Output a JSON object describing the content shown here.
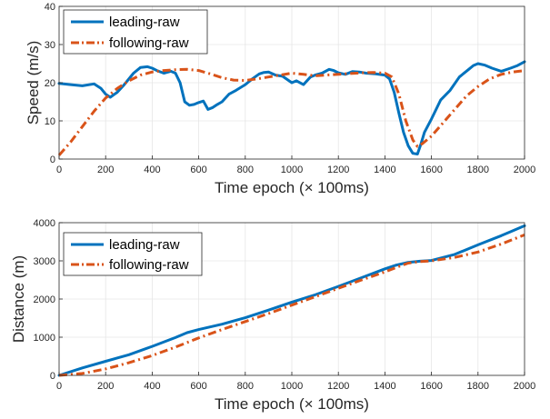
{
  "colors": {
    "leading": "#0072BD",
    "following": "#D95319",
    "grid": "#e6e6e6",
    "axis": "#262626"
  },
  "chart_data": [
    {
      "type": "line",
      "title": "",
      "xlabel": "Time epoch (× 100ms)",
      "ylabel": "Speed (m/s)",
      "xlim": [
        0,
        2000
      ],
      "ylim": [
        0,
        40
      ],
      "xticks": [
        0,
        200,
        400,
        600,
        800,
        1000,
        1200,
        1400,
        1600,
        1800,
        2000
      ],
      "yticks": [
        0,
        10,
        20,
        30,
        40
      ],
      "grid": true,
      "legend_position": "top-left",
      "series": [
        {
          "name": "leading-raw",
          "style": "solid",
          "x": [
            0,
            50,
            100,
            150,
            180,
            200,
            220,
            250,
            280,
            320,
            350,
            380,
            400,
            420,
            450,
            480,
            500,
            520,
            540,
            560,
            580,
            600,
            620,
            640,
            660,
            680,
            700,
            730,
            760,
            800,
            830,
            860,
            880,
            900,
            930,
            960,
            1000,
            1020,
            1050,
            1080,
            1100,
            1130,
            1160,
            1180,
            1200,
            1230,
            1260,
            1290,
            1320,
            1360,
            1400,
            1420,
            1440,
            1460,
            1480,
            1500,
            1520,
            1540,
            1555,
            1570,
            1600,
            1640,
            1680,
            1720,
            1760,
            1780,
            1800,
            1830,
            1860,
            1900,
            1940,
            1970,
            2000
          ],
          "y": [
            19.8,
            19.5,
            19.2,
            19.7,
            18.5,
            17,
            16.2,
            17.5,
            19.5,
            22.5,
            24,
            24.2,
            23.8,
            23.2,
            22.5,
            23,
            22.5,
            20,
            15,
            14.1,
            14.3,
            14.8,
            15.2,
            13,
            13.5,
            14.3,
            15,
            17,
            18,
            19.5,
            21,
            22.3,
            22.7,
            22.8,
            22,
            21.7,
            20,
            20.5,
            19.5,
            21.5,
            22,
            22.5,
            23.5,
            23.2,
            22.6,
            22.2,
            22.9,
            22.8,
            22.5,
            22.3,
            22,
            21,
            17.5,
            12,
            7,
            3.5,
            1.5,
            1.3,
            4,
            7,
            10.5,
            15.5,
            18,
            21.5,
            23.5,
            24.5,
            25,
            24.6,
            23.8,
            23,
            23.8,
            24.5,
            25.5
          ]
        },
        {
          "name": "following-raw",
          "style": "dashdot",
          "x": [
            0,
            50,
            100,
            150,
            200,
            250,
            300,
            350,
            400,
            450,
            500,
            550,
            600,
            650,
            700,
            750,
            800,
            850,
            900,
            950,
            1000,
            1050,
            1100,
            1150,
            1200,
            1250,
            1300,
            1350,
            1400,
            1430,
            1460,
            1490,
            1520,
            1540,
            1560,
            1600,
            1650,
            1700,
            1750,
            1800,
            1850,
            1900,
            1950,
            2000
          ],
          "y": [
            1,
            4.5,
            8.5,
            12.5,
            16,
            18.5,
            20.5,
            22,
            22.8,
            23.2,
            23.4,
            23.5,
            23.2,
            22.3,
            21.3,
            20.7,
            20.6,
            21,
            21.5,
            22,
            22.5,
            22.2,
            21.8,
            22,
            22.2,
            22.4,
            22.6,
            22.7,
            22.5,
            21.5,
            17,
            10,
            5,
            3.3,
            4,
            6,
            9.5,
            13,
            16.5,
            19,
            21,
            22.2,
            22.8,
            23.2
          ]
        }
      ]
    },
    {
      "type": "line",
      "title": "",
      "xlabel": "Time epoch (× 100ms)",
      "ylabel": "Distance (m)",
      "xlim": [
        0,
        2000
      ],
      "ylim": [
        0,
        4000
      ],
      "xticks": [
        0,
        200,
        400,
        600,
        800,
        1000,
        1200,
        1400,
        1600,
        1800,
        2000
      ],
      "yticks": [
        0,
        1000,
        2000,
        3000,
        4000
      ],
      "grid": true,
      "legend_position": "top-left",
      "series": [
        {
          "name": "leading-raw",
          "style": "solid",
          "x": [
            0,
            100,
            200,
            300,
            400,
            500,
            550,
            600,
            700,
            800,
            900,
            1000,
            1100,
            1200,
            1300,
            1400,
            1450,
            1500,
            1550,
            1600,
            1700,
            1800,
            1900,
            2000
          ],
          "y": [
            0,
            195,
            370,
            540,
            760,
            990,
            1120,
            1200,
            1340,
            1510,
            1710,
            1920,
            2110,
            2330,
            2560,
            2790,
            2890,
            2960,
            2990,
            3010,
            3170,
            3420,
            3660,
            3920
          ]
        },
        {
          "name": "following-raw",
          "style": "dashdot",
          "x": [
            0,
            100,
            200,
            300,
            400,
            500,
            600,
            700,
            800,
            900,
            1000,
            1100,
            1200,
            1300,
            1400,
            1450,
            1500,
            1550,
            1600,
            1700,
            1800,
            1900,
            2000
          ],
          "y": [
            0,
            50,
            170,
            330,
            520,
            740,
            980,
            1200,
            1410,
            1620,
            1840,
            2060,
            2280,
            2500,
            2710,
            2830,
            2940,
            2980,
            3000,
            3090,
            3230,
            3440,
            3680
          ]
        }
      ]
    }
  ]
}
